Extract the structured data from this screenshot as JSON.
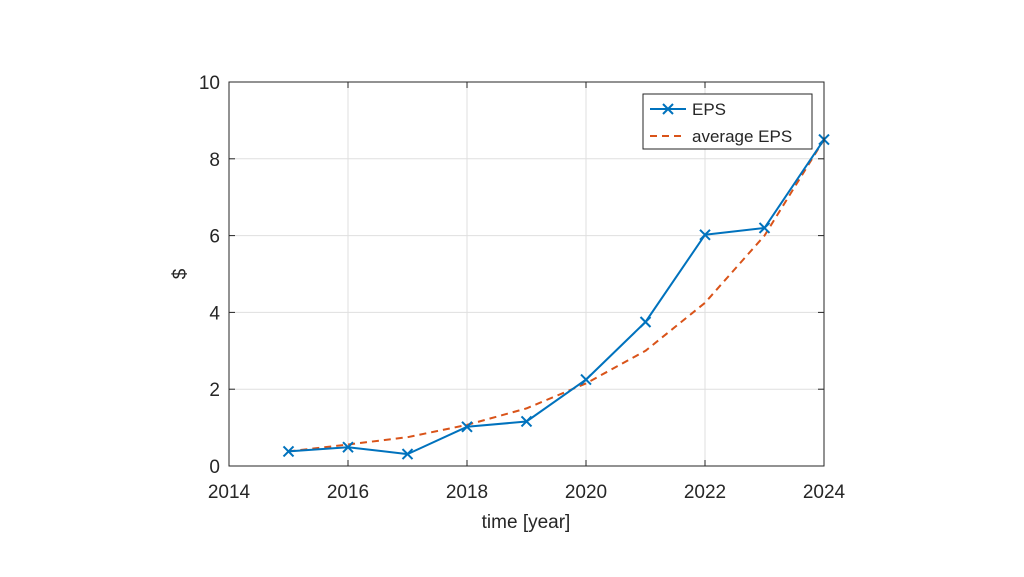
{
  "chart_data": {
    "type": "line",
    "title": "",
    "xlabel": "time [year]",
    "ylabel": "$",
    "xlim": [
      2014,
      2024
    ],
    "ylim": [
      0,
      10
    ],
    "xticks": [
      2014,
      2016,
      2018,
      2020,
      2022,
      2024
    ],
    "yticks": [
      0,
      2,
      4,
      6,
      8,
      10
    ],
    "grid": true,
    "legend_position": "top-right",
    "series": [
      {
        "name": "EPS",
        "style": "solid",
        "marker": "x",
        "color": "#0072BD",
        "x": [
          2015,
          2016,
          2017,
          2018,
          2019,
          2020,
          2021,
          2022,
          2023,
          2024
        ],
        "y": [
          0.38,
          0.49,
          0.31,
          1.02,
          1.16,
          2.25,
          3.75,
          6.02,
          6.2,
          8.5
        ]
      },
      {
        "name": "average EPS",
        "style": "dashed",
        "marker": "none",
        "color": "#D95319",
        "x": [
          2015,
          2016,
          2017,
          2018,
          2019,
          2020,
          2021,
          2022,
          2023,
          2024
        ],
        "y": [
          0.38,
          0.56,
          0.75,
          1.07,
          1.5,
          2.15,
          3.0,
          4.25,
          6.0,
          8.5
        ]
      }
    ]
  }
}
